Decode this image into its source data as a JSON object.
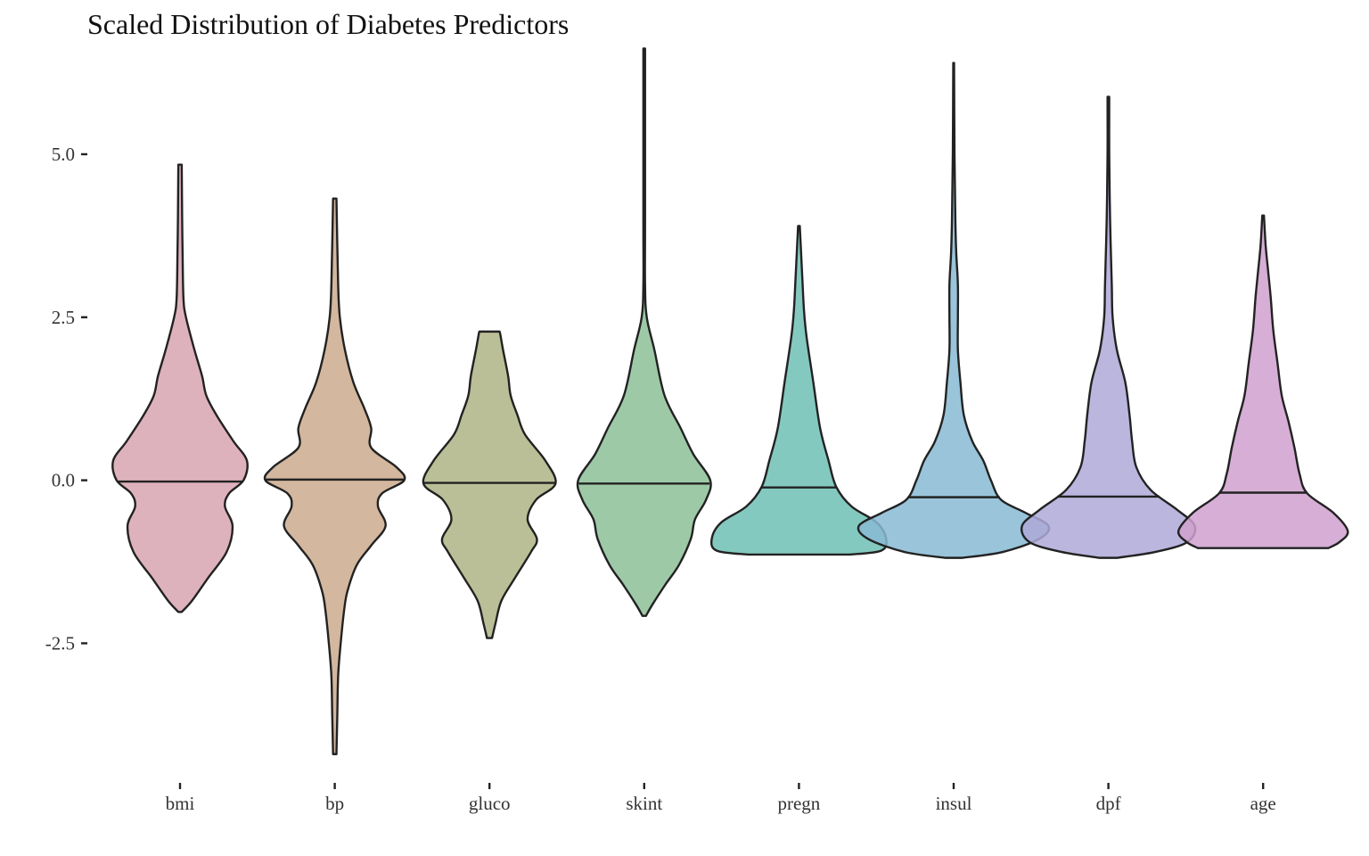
{
  "chart_data": {
    "type": "violin",
    "title": "Scaled Distribution of Diabetes Predictors",
    "xlabel": "",
    "ylabel": "",
    "ylim": [
      -4.6,
      6.75
    ],
    "y_ticks": [
      {
        "value": -2.5,
        "label": "-2.5"
      },
      {
        "value": 0.0,
        "label": "0.0"
      },
      {
        "value": 2.5,
        "label": "2.5"
      },
      {
        "value": 5.0,
        "label": "5.0"
      }
    ],
    "grid": false,
    "legend": "none",
    "categories": [
      "bmi",
      "bp",
      "gluco",
      "skint",
      "pregn",
      "insul",
      "dpf",
      "age"
    ],
    "series": [
      {
        "name": "bmi",
        "color": "#D8A5B1",
        "median": -0.02,
        "min": -2.02,
        "max": 4.84,
        "profile": [
          [
            -2.02,
            0.02
          ],
          [
            -1.85,
            0.14
          ],
          [
            -1.5,
            0.33
          ],
          [
            -1.1,
            0.55
          ],
          [
            -0.7,
            0.62
          ],
          [
            -0.4,
            0.53
          ],
          [
            -0.2,
            0.58
          ],
          [
            0.0,
            0.75
          ],
          [
            0.3,
            0.79
          ],
          [
            0.6,
            0.63
          ],
          [
            1.0,
            0.43
          ],
          [
            1.3,
            0.31
          ],
          [
            1.6,
            0.26
          ],
          [
            2.0,
            0.17
          ],
          [
            2.5,
            0.07
          ],
          [
            2.8,
            0.04
          ],
          [
            3.5,
            0.03
          ],
          [
            4.0,
            0.025
          ],
          [
            4.84,
            0.02
          ]
        ]
      },
      {
        "name": "bp",
        "color": "#CBAA8D",
        "median": 0.01,
        "min": -4.2,
        "max": 4.32,
        "profile": [
          [
            -4.2,
            0.02
          ],
          [
            -3.6,
            0.03
          ],
          [
            -3.0,
            0.04
          ],
          [
            -2.5,
            0.07
          ],
          [
            -2.0,
            0.11
          ],
          [
            -1.7,
            0.15
          ],
          [
            -1.3,
            0.26
          ],
          [
            -1.0,
            0.43
          ],
          [
            -0.7,
            0.6
          ],
          [
            -0.4,
            0.51
          ],
          [
            -0.2,
            0.56
          ],
          [
            0.0,
            0.82
          ],
          [
            0.2,
            0.73
          ],
          [
            0.5,
            0.43
          ],
          [
            0.8,
            0.43
          ],
          [
            1.1,
            0.35
          ],
          [
            1.5,
            0.22
          ],
          [
            2.0,
            0.12
          ],
          [
            2.5,
            0.06
          ],
          [
            3.0,
            0.04
          ],
          [
            4.32,
            0.02
          ]
        ]
      },
      {
        "name": "gluco",
        "color": "#AFB485",
        "median": -0.04,
        "min": -2.42,
        "max": 2.28,
        "profile": [
          [
            -2.42,
            0.03
          ],
          [
            -2.2,
            0.07
          ],
          [
            -1.85,
            0.14
          ],
          [
            -1.5,
            0.3
          ],
          [
            -1.1,
            0.49
          ],
          [
            -0.9,
            0.56
          ],
          [
            -0.6,
            0.45
          ],
          [
            -0.3,
            0.55
          ],
          [
            -0.05,
            0.78
          ],
          [
            0.3,
            0.66
          ],
          [
            0.7,
            0.42
          ],
          [
            1.0,
            0.33
          ],
          [
            1.3,
            0.25
          ],
          [
            1.6,
            0.22
          ],
          [
            2.0,
            0.16
          ],
          [
            2.22,
            0.13
          ],
          [
            2.28,
            0.12
          ]
        ]
      },
      {
        "name": "skint",
        "color": "#8DBF98",
        "median": -0.05,
        "min": -2.08,
        "max": 6.62,
        "profile": [
          [
            -2.08,
            0.02
          ],
          [
            -1.9,
            0.1
          ],
          [
            -1.6,
            0.25
          ],
          [
            -1.3,
            0.41
          ],
          [
            -0.9,
            0.55
          ],
          [
            -0.6,
            0.6
          ],
          [
            -0.3,
            0.73
          ],
          [
            0.0,
            0.78
          ],
          [
            0.4,
            0.58
          ],
          [
            0.8,
            0.43
          ],
          [
            1.3,
            0.24
          ],
          [
            2.0,
            0.12
          ],
          [
            2.5,
            0.03
          ],
          [
            3.0,
            0.01
          ],
          [
            4.0,
            0.01
          ],
          [
            6.62,
            0.01
          ]
        ]
      },
      {
        "name": "pregn",
        "color": "#6FC0B4",
        "median": -0.11,
        "min": -1.14,
        "max": 3.9,
        "profile": [
          [
            -1.14,
            0.6
          ],
          [
            -1.08,
            0.97
          ],
          [
            -0.9,
            1.03
          ],
          [
            -0.65,
            0.92
          ],
          [
            -0.4,
            0.62
          ],
          [
            -0.1,
            0.44
          ],
          [
            0.3,
            0.35
          ],
          [
            0.8,
            0.25
          ],
          [
            1.5,
            0.17
          ],
          [
            2.2,
            0.09
          ],
          [
            2.6,
            0.06
          ],
          [
            3.1,
            0.04
          ],
          [
            3.9,
            0.01
          ]
        ]
      },
      {
        "name": "insul",
        "color": "#87BAD4",
        "median": -0.26,
        "min": -1.19,
        "max": 6.4,
        "profile": [
          [
            -1.19,
            0.1
          ],
          [
            -1.1,
            0.58
          ],
          [
            -0.9,
            1.01
          ],
          [
            -0.7,
            1.12
          ],
          [
            -0.5,
            0.85
          ],
          [
            -0.3,
            0.56
          ],
          [
            0.0,
            0.44
          ],
          [
            0.3,
            0.35
          ],
          [
            0.6,
            0.22
          ],
          [
            1.0,
            0.12
          ],
          [
            1.5,
            0.08
          ],
          [
            2.0,
            0.05
          ],
          [
            2.5,
            0.05
          ],
          [
            3.0,
            0.05
          ],
          [
            3.5,
            0.03
          ],
          [
            4.0,
            0.02
          ],
          [
            5.0,
            0.01
          ],
          [
            6.4,
            0.005
          ]
        ]
      },
      {
        "name": "dpf",
        "color": "#AEA9D8",
        "median": -0.25,
        "min": -1.19,
        "max": 5.88,
        "profile": [
          [
            -1.19,
            0.1
          ],
          [
            -1.1,
            0.55
          ],
          [
            -0.95,
            0.93
          ],
          [
            -0.7,
            1.02
          ],
          [
            -0.45,
            0.81
          ],
          [
            -0.15,
            0.5
          ],
          [
            0.2,
            0.33
          ],
          [
            0.6,
            0.28
          ],
          [
            1.0,
            0.25
          ],
          [
            1.5,
            0.2
          ],
          [
            2.0,
            0.1
          ],
          [
            2.5,
            0.05
          ],
          [
            3.0,
            0.04
          ],
          [
            4.0,
            0.02
          ],
          [
            5.0,
            0.01
          ],
          [
            5.88,
            0.01
          ]
        ]
      },
      {
        "name": "age",
        "color": "#D0A0CE",
        "median": -0.19,
        "min": -1.04,
        "max": 4.06,
        "profile": [
          [
            -1.04,
            0.77
          ],
          [
            -0.95,
            0.9
          ],
          [
            -0.78,
            1.0
          ],
          [
            -0.5,
            0.83
          ],
          [
            -0.2,
            0.52
          ],
          [
            0.1,
            0.43
          ],
          [
            0.5,
            0.37
          ],
          [
            0.9,
            0.3
          ],
          [
            1.3,
            0.22
          ],
          [
            1.8,
            0.17
          ],
          [
            2.3,
            0.12
          ],
          [
            2.8,
            0.09
          ],
          [
            3.2,
            0.06
          ],
          [
            3.6,
            0.03
          ],
          [
            4.06,
            0.01
          ]
        ]
      }
    ]
  }
}
